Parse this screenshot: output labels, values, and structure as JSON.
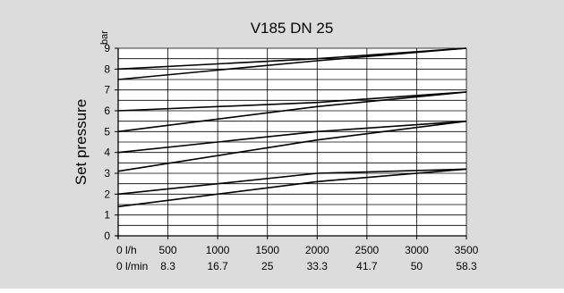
{
  "chart_data": {
    "type": "line",
    "title": "V185 DN 25",
    "ylabel": "Set pressure",
    "yunit": "bar",
    "xlim": [
      0,
      3500
    ],
    "ylim": [
      0,
      9
    ],
    "x_ticks": [
      0,
      500,
      1000,
      1500,
      2000,
      2500,
      3000,
      3500
    ],
    "x_tick_labels_lh": [
      "0 l/h",
      "500",
      "1000",
      "1500",
      "2000",
      "2500",
      "3000",
      "3500"
    ],
    "x_tick_labels_lmin": [
      "0 l/min",
      "8.3",
      "16.7",
      "25",
      "33.3",
      "41.7",
      "50",
      "58.3"
    ],
    "y_ticks": [
      0,
      1,
      2,
      3,
      4,
      5,
      6,
      7,
      8,
      9
    ],
    "y_tick_labels": [
      "0",
      "1",
      "2",
      "3",
      "4",
      "5",
      "6",
      "7",
      "8",
      "9"
    ],
    "grid": true,
    "line_color": "#000000",
    "background": "#dcdcdc",
    "series": [
      {
        "x": [
          0,
          2000,
          3500
        ],
        "y": [
          1.4,
          2.6,
          3.2
        ]
      },
      {
        "x": [
          0,
          2000,
          3500
        ],
        "y": [
          2.0,
          3.0,
          3.2
        ]
      },
      {
        "x": [
          0,
          2000,
          3500
        ],
        "y": [
          3.1,
          4.6,
          5.5
        ]
      },
      {
        "x": [
          0,
          2000,
          3500
        ],
        "y": [
          4.0,
          5.0,
          5.5
        ]
      },
      {
        "x": [
          0,
          2000,
          3500
        ],
        "y": [
          5.0,
          6.2,
          6.9
        ]
      },
      {
        "x": [
          0,
          2000,
          3500
        ],
        "y": [
          6.0,
          6.4,
          6.9
        ]
      },
      {
        "x": [
          0,
          2000,
          3500
        ],
        "y": [
          7.5,
          8.4,
          9.0
        ]
      },
      {
        "x": [
          0,
          2000,
          3500
        ],
        "y": [
          8.0,
          8.5,
          9.0
        ]
      }
    ]
  }
}
